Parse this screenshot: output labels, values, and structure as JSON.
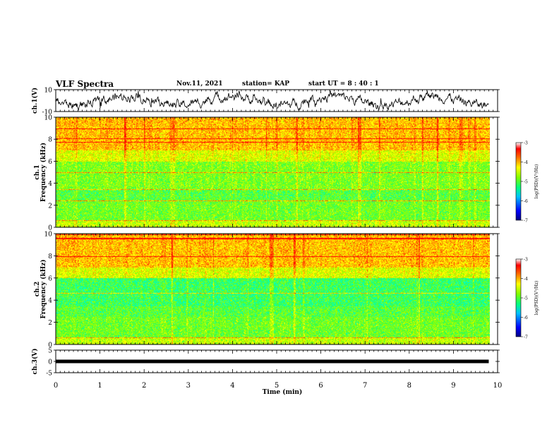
{
  "header": {
    "title": "VLF Spectra",
    "date": "Nov.11, 2021",
    "station": "station= KAP",
    "start": "start  UT =  8 : 40 : 1"
  },
  "colors": {
    "spectrogram": [
      "#000090",
      "#0040ff",
      "#00c0ff",
      "#00ffc0",
      "#40ff40",
      "#a0ff00",
      "#ffff00",
      "#ffa000",
      "#ff4000",
      "#ff0000",
      "#ffd8d8"
    ]
  },
  "chart_data": [
    {
      "type": "line",
      "name": "ch1-waveform",
      "ylabel": "ch.1(V)",
      "ylim": [
        -10,
        10
      ],
      "yticks": [
        "10",
        "-10"
      ],
      "x_range_min": [
        0,
        9.8
      ]
    },
    {
      "type": "heatmap",
      "name": "ch1-spectrogram",
      "ylabel": "ch.1",
      "ylabel2": "Frequency (kHz)",
      "ylim": [
        0,
        10
      ],
      "yticks": [
        "0",
        "2",
        "4",
        "6",
        "8",
        "10"
      ],
      "colorbar": {
        "label": "log(PSD)(V²/Hz)",
        "range": [
          -7,
          -3
        ],
        "ticks": [
          "-3",
          "-4",
          "-5",
          "-6",
          "-7"
        ]
      }
    },
    {
      "type": "heatmap",
      "name": "ch2-spectrogram",
      "ylabel": "ch.2",
      "ylabel2": "Frequency (kHz)",
      "ylim": [
        0,
        10
      ],
      "yticks": [
        "0",
        "2",
        "4",
        "6",
        "8",
        "10"
      ],
      "colorbar": {
        "label": "log(PSD)(V²/Hz)",
        "range": [
          -7,
          -3
        ],
        "ticks": [
          "-3",
          "-4",
          "-5",
          "-6",
          "-7"
        ]
      }
    },
    {
      "type": "line",
      "name": "ch3-waveform",
      "ylabel": "ch.3(V)",
      "ylim": [
        -5,
        5
      ],
      "yticks": [
        "5",
        "0",
        "-5"
      ],
      "value": 0,
      "x_range_min": [
        0,
        9.8
      ]
    }
  ],
  "xaxis": {
    "label": "Time (min)",
    "range": [
      0,
      10
    ],
    "ticks": [
      "0",
      "1",
      "2",
      "3",
      "4",
      "5",
      "6",
      "7",
      "8",
      "9",
      "10"
    ]
  }
}
